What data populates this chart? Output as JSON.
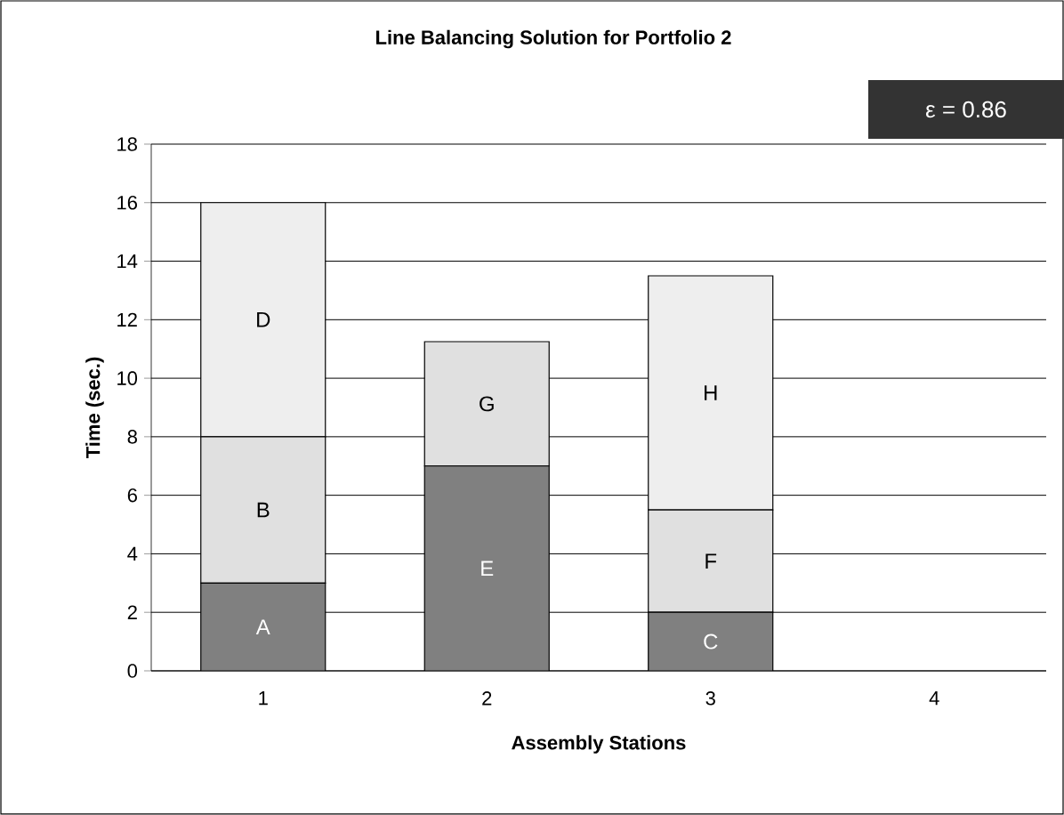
{
  "chart_data": {
    "type": "bar",
    "stacked": true,
    "title": "Line Balancing Solution for Portfolio 2",
    "xlabel": "Assembly Stations",
    "ylabel": "Time (sec.)",
    "categories": [
      "1",
      "2",
      "3",
      "4"
    ],
    "series": [
      {
        "color": "#808080",
        "values": [
          3,
          7,
          2,
          null
        ],
        "value_labels": [
          "A",
          "E",
          "C",
          null
        ]
      },
      {
        "color": "#e0e0e0",
        "values": [
          5,
          4.25,
          3.5,
          null
        ],
        "value_labels": [
          "B",
          "G",
          "F",
          null
        ]
      },
      {
        "color": "#eeeeee",
        "values": [
          8,
          null,
          8,
          null
        ],
        "value_labels": [
          "D",
          null,
          "H",
          null
        ]
      }
    ],
    "ylim": [
      0,
      18
    ],
    "yticks": [
      0,
      2,
      4,
      6,
      8,
      10,
      12,
      14,
      16,
      18
    ],
    "grid": "y",
    "annotations": [
      "ε = 0.86"
    ]
  }
}
